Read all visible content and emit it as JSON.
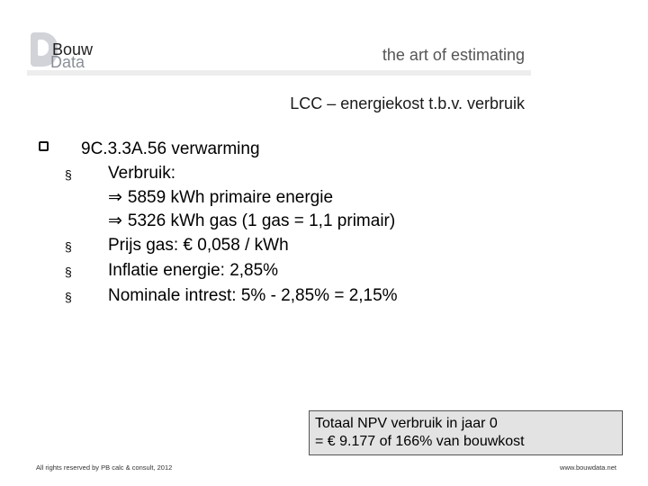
{
  "header": {
    "logo_text_top": "Bouw",
    "logo_text_bottom": "Data",
    "tagline": "the art of estimating"
  },
  "slide": {
    "subtitle": "LCC – energiekost t.b.v. verbruik",
    "main_bullet": "9C.3.3A.56 verwarming",
    "items": [
      {
        "bullet": "§",
        "text": "Verbruik:",
        "sub": [
          "5859 kWh primaire energie",
          "5326 kWh gas (1 gas = 1,1 primair)"
        ]
      },
      {
        "bullet": "§",
        "text": "Prijs gas: € 0,058 / kWh"
      },
      {
        "bullet": "§",
        "text": "Inflatie energie: 2,85%"
      },
      {
        "bullet": "§",
        "text": "Nominale intrest: 5% - 2,85% = 2,15%"
      }
    ],
    "arrow_symbol": "⇒",
    "summary": {
      "line1": "Totaal NPV verbruik in jaar 0",
      "line2": "= € 9.177 of 166% van bouwkost"
    }
  },
  "footer": {
    "left": "All rights reserved by PB calc & consult, 2012",
    "right": "www.bouwdata.net"
  }
}
